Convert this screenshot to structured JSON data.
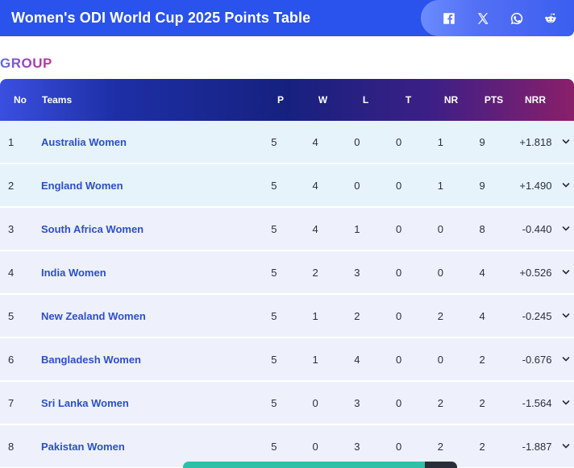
{
  "header": {
    "title": "Women's ODI World Cup 2025 Points Table",
    "share_icons": [
      "facebook-icon",
      "x-icon",
      "whatsapp-icon",
      "reddit-icon"
    ]
  },
  "group_label": "GROUP",
  "table": {
    "columns": {
      "no": "No",
      "teams": "Teams",
      "p": "P",
      "w": "W",
      "l": "L",
      "t": "T",
      "nr": "NR",
      "pts": "PTS",
      "nrr": "NRR"
    },
    "rows": [
      {
        "no": "1",
        "team": "Australia Women",
        "p": "5",
        "w": "4",
        "l": "0",
        "t": "0",
        "nr": "1",
        "pts": "9",
        "nrr": "+1.818",
        "qualified": true
      },
      {
        "no": "2",
        "team": "England Women",
        "p": "5",
        "w": "4",
        "l": "0",
        "t": "0",
        "nr": "1",
        "pts": "9",
        "nrr": "+1.490",
        "qualified": true
      },
      {
        "no": "3",
        "team": "South Africa Women",
        "p": "5",
        "w": "4",
        "l": "1",
        "t": "0",
        "nr": "0",
        "pts": "8",
        "nrr": "-0.440",
        "qualified": false
      },
      {
        "no": "4",
        "team": "India Women",
        "p": "5",
        "w": "2",
        "l": "3",
        "t": "0",
        "nr": "0",
        "pts": "4",
        "nrr": "+0.526",
        "qualified": false
      },
      {
        "no": "5",
        "team": "New Zealand Women",
        "p": "5",
        "w": "1",
        "l": "2",
        "t": "0",
        "nr": "2",
        "pts": "4",
        "nrr": "-0.245",
        "qualified": false
      },
      {
        "no": "6",
        "team": "Bangladesh Women",
        "p": "5",
        "w": "1",
        "l": "4",
        "t": "0",
        "nr": "0",
        "pts": "2",
        "nrr": "-0.676",
        "qualified": false
      },
      {
        "no": "7",
        "team": "Sri Lanka Women",
        "p": "5",
        "w": "0",
        "l": "3",
        "t": "0",
        "nr": "2",
        "pts": "2",
        "nrr": "-1.564",
        "qualified": false
      },
      {
        "no": "8",
        "team": "Pakistan Women",
        "p": "5",
        "w": "0",
        "l": "3",
        "t": "0",
        "nr": "2",
        "pts": "2",
        "nrr": "-1.887",
        "qualified": false
      }
    ]
  },
  "colors": {
    "header_bg": "#2a52ec",
    "qualified_row": "#e6f3fb",
    "other_row": "#eef1fb",
    "team_link": "#2c4fc7",
    "bottom_bar_accent": "#2fbfa8"
  }
}
